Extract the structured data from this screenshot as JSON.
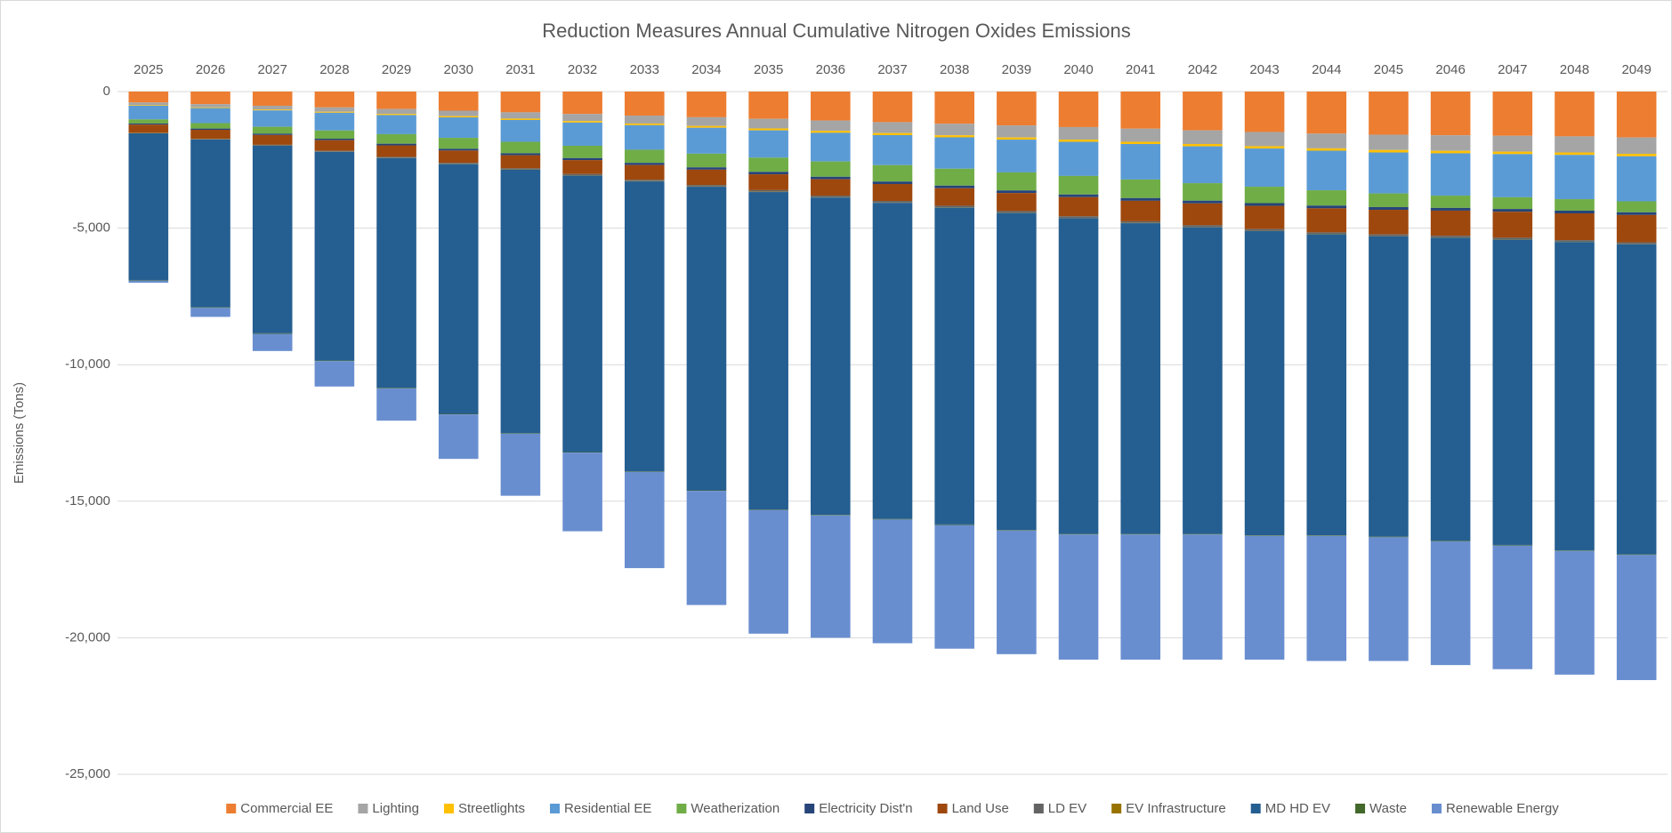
{
  "chart_data": {
    "type": "bar",
    "stacked": true,
    "title": "Reduction Measures Annual Cumulative Nitrogen Oxides Emissions",
    "y_label": "Emissions (Tons)",
    "categories": [
      "2025",
      "2026",
      "2027",
      "2028",
      "2029",
      "2030",
      "2031",
      "2032",
      "2033",
      "2034",
      "2035",
      "2036",
      "2037",
      "2038",
      "2039",
      "2040",
      "2041",
      "2042",
      "2043",
      "2044",
      "2045",
      "2046",
      "2047",
      "2048",
      "2049"
    ],
    "ylim": [
      -25000,
      0
    ],
    "yticks": [
      {
        "value": -25000,
        "label": "-25,000"
      },
      {
        "value": -20000,
        "label": "-20,000"
      },
      {
        "value": -15000,
        "label": "-15,000"
      },
      {
        "value": -10000,
        "label": "-10,000"
      },
      {
        "value": -5000,
        "label": "-5,000"
      },
      0
    ],
    "grid": true,
    "legend": "bottom",
    "series": [
      {
        "name": "Commercial EE",
        "color": "#ed7d31",
        "values": [
          -400,
          -460,
          -520,
          -580,
          -640,
          -700,
          -760,
          -820,
          -880,
          -940,
          -1000,
          -1060,
          -1120,
          -1180,
          -1240,
          -1300,
          -1360,
          -1420,
          -1480,
          -1540,
          -1580,
          -1600,
          -1620,
          -1640,
          -1680
        ]
      },
      {
        "name": "Lighting",
        "color": "#a5a5a5",
        "values": [
          -100,
          -120,
          -140,
          -160,
          -180,
          -200,
          -230,
          -260,
          -290,
          -320,
          -350,
          -380,
          -400,
          -420,
          -440,
          -460,
          -480,
          -500,
          -520,
          -540,
          -560,
          -570,
          -580,
          -590,
          -600
        ]
      },
      {
        "name": "Streetlights",
        "color": "#ffc000",
        "values": [
          -20,
          -25,
          -30,
          -35,
          -40,
          -45,
          -50,
          -55,
          -60,
          -65,
          -70,
          -70,
          -75,
          -75,
          -80,
          -80,
          -80,
          -85,
          -85,
          -85,
          -90,
          -90,
          -90,
          -90,
          -90
        ]
      },
      {
        "name": "Residential EE",
        "color": "#5b9bd5",
        "values": [
          -500,
          -550,
          -600,
          -650,
          -700,
          -750,
          -800,
          -850,
          -900,
          -950,
          -1000,
          -1050,
          -1100,
          -1150,
          -1200,
          -1250,
          -1300,
          -1350,
          -1400,
          -1450,
          -1500,
          -1550,
          -1580,
          -1620,
          -1650
        ]
      },
      {
        "name": "Weatherization",
        "color": "#70ad47",
        "values": [
          -150,
          -200,
          -250,
          -300,
          -350,
          -400,
          -420,
          -450,
          -480,
          -500,
          -520,
          -560,
          -600,
          -620,
          -660,
          -680,
          -680,
          -640,
          -600,
          -560,
          -500,
          -450,
          -430,
          -420,
          -400
        ]
      },
      {
        "name": "Electricity Dist'n",
        "color": "#264478",
        "values": [
          -40,
          -45,
          -50,
          -55,
          -60,
          -65,
          -70,
          -75,
          -80,
          -85,
          -90,
          -90,
          -90,
          -95,
          -95,
          -95,
          -100,
          -100,
          -100,
          -100,
          -100,
          -100,
          -100,
          -100,
          -100
        ]
      },
      {
        "name": "Land Use",
        "color": "#9e480e",
        "values": [
          -300,
          -330,
          -360,
          -390,
          -420,
          -450,
          -480,
          -510,
          -540,
          -560,
          -580,
          -600,
          -620,
          -640,
          -660,
          -700,
          -750,
          -800,
          -850,
          -880,
          -900,
          -920,
          -950,
          -980,
          -1000
        ]
      },
      {
        "name": "LD EV",
        "color": "#636363",
        "values": [
          -10,
          -15,
          -20,
          -25,
          -30,
          -35,
          -40,
          -45,
          -50,
          -55,
          -60,
          -60,
          -60,
          -60,
          -60,
          -60,
          -60,
          -60,
          -60,
          -60,
          -60,
          -60,
          -60,
          -60,
          -60
        ]
      },
      {
        "name": "EV Infrastructure",
        "color": "#997300",
        "values": [
          -10,
          -10,
          -10,
          -10,
          -10,
          -10,
          -10,
          -10,
          -10,
          -10,
          -10,
          -10,
          -10,
          -10,
          -10,
          -10,
          -10,
          -10,
          -10,
          -10,
          -10,
          -10,
          -10,
          -10,
          -10
        ]
      },
      {
        "name": "MD HD EV",
        "color": "#255e91",
        "values": [
          -5370,
          -6145,
          -6870,
          -7645,
          -8420,
          -9145,
          -9640,
          -10125,
          -10610,
          -11115,
          -11620,
          -11620,
          -11575,
          -11600,
          -11605,
          -11565,
          -11380,
          -11235,
          -11145,
          -11025,
          -11000,
          -11100,
          -11180,
          -11290,
          -11360
        ]
      },
      {
        "name": "Waste",
        "color": "#43682b",
        "values": [
          -20,
          -20,
          -20,
          -20,
          -20,
          -20,
          -20,
          -20,
          -20,
          -20,
          -20,
          -20,
          -20,
          -20,
          -20,
          -20,
          -20,
          -20,
          -20,
          -20,
          -20,
          -20,
          -20,
          -20,
          -20
        ]
      },
      {
        "name": "Renewable Energy",
        "color": "#698ed0",
        "values": [
          -80,
          -330,
          -630,
          -930,
          -1180,
          -1630,
          -2280,
          -2880,
          -3530,
          -4180,
          -4530,
          -4480,
          -4530,
          -4530,
          -4530,
          -4580,
          -4580,
          -4580,
          -4530,
          -4580,
          -4530,
          -4530,
          -4530,
          -4530,
          -4580
        ]
      }
    ]
  }
}
